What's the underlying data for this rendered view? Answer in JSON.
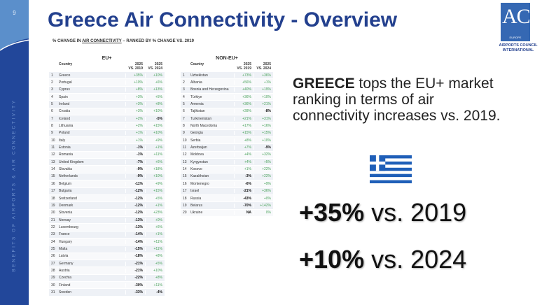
{
  "page_number": "9",
  "sidebar_text": "BENEFITS OF AIRPORTS & AIR CONNECTIVITY",
  "title": "Greece Air Connectivity - Overview",
  "subtitle": {
    "pre": "% CHANGE IN ",
    "link": "AIR CONNECTIVITY",
    "post": " – RANKED BY % CHANGE VS. 2019"
  },
  "logo": {
    "mark": "ACI",
    "region": "EUROPE",
    "name1": "AIRPORTS COUNCIL",
    "name2": "INTERNATIONAL"
  },
  "colors": {
    "brand": "#23408e",
    "positive": "#4aa35b"
  },
  "eu": {
    "group": "EU+",
    "headers": {
      "country": "Country",
      "c1a": "2025",
      "c1b": "VS. 2019",
      "c2a": "2025",
      "c2b": "VS. 2024"
    },
    "rows": [
      [
        "1",
        "Greece",
        "+35%",
        "+10%"
      ],
      [
        "2",
        "Portugal",
        "+10%",
        "+6%"
      ],
      [
        "3",
        "Cyprus",
        "+8%",
        "+13%"
      ],
      [
        "4",
        "Spain",
        "+3%",
        "+5%"
      ],
      [
        "5",
        "Ireland",
        "+3%",
        "+8%"
      ],
      [
        "6",
        "Croatia",
        "+3%",
        "+10%"
      ],
      [
        "7",
        "Iceland",
        "+2%",
        "-5%"
      ],
      [
        "8",
        "Lithuania",
        "+2%",
        "+15%"
      ],
      [
        "9",
        "Poland",
        "+1%",
        "+10%"
      ],
      [
        "10",
        "Italy",
        "+1%",
        "+9%"
      ],
      [
        "11",
        "Estonia",
        "-1%",
        "+1%"
      ],
      [
        "12",
        "Romania",
        "-1%",
        "+11%"
      ],
      [
        "13",
        "United Kingdom",
        "-7%",
        "+6%"
      ],
      [
        "14",
        "Slovakia",
        "-9%",
        "+18%"
      ],
      [
        "15",
        "Netherlands",
        "-9%",
        "+10%"
      ],
      [
        "16",
        "Belgium",
        "-11%",
        "+9%"
      ],
      [
        "17",
        "Bulgaria",
        "-12%",
        "+15%"
      ],
      [
        "18",
        "Switzerland",
        "-12%",
        "+5%"
      ],
      [
        "19",
        "Denmark",
        "-12%",
        "+1%"
      ],
      [
        "20",
        "Slovenia",
        "-12%",
        "+23%"
      ],
      [
        "21",
        "Norway",
        "-13%",
        "+0%"
      ],
      [
        "22",
        "Luxembourg",
        "-13%",
        "+6%"
      ],
      [
        "23",
        "France",
        "-14%",
        "+1%"
      ],
      [
        "24",
        "Hungary",
        "-14%",
        "+11%"
      ],
      [
        "25",
        "Malta",
        "-15%",
        "+11%"
      ],
      [
        "26",
        "Latvia",
        "-18%",
        "+8%"
      ],
      [
        "27",
        "Germany",
        "-21%",
        "+5%"
      ],
      [
        "28",
        "Austria",
        "-21%",
        "+10%"
      ],
      [
        "29",
        "Czechia",
        "-22%",
        "+8%"
      ],
      [
        "30",
        "Finland",
        "-30%",
        "+11%"
      ],
      [
        "31",
        "Sweden",
        "-33%",
        "-4%"
      ]
    ]
  },
  "noneu": {
    "group": "NON-EU+",
    "headers": {
      "country": "Country",
      "c1a": "2025",
      "c1b": "VS. 2019",
      "c2a": "2025",
      "c2b": "VS. 2024"
    },
    "rows": [
      [
        "1",
        "Uzbekistan",
        "+73%",
        "+36%"
      ],
      [
        "2",
        "Albania",
        "+56%",
        "+1%"
      ],
      [
        "3",
        "Bosnia and Herzegovina",
        "+40%",
        "+19%"
      ],
      [
        "4",
        "Türkiye",
        "+36%",
        "+10%"
      ],
      [
        "5",
        "Armenia",
        "+36%",
        "+21%"
      ],
      [
        "6",
        "Tajikistan",
        "+28%",
        "-8%"
      ],
      [
        "7",
        "Turkmenistan",
        "+21%",
        "+31%"
      ],
      [
        "8",
        "North Macedonia",
        "+17%",
        "+16%"
      ],
      [
        "9",
        "Georgia",
        "+15%",
        "+15%"
      ],
      [
        "10",
        "Serbia",
        "+8%",
        "+10%"
      ],
      [
        "11",
        "Azerbaijan",
        "+7%",
        "-9%"
      ],
      [
        "12",
        "Moldova",
        "+4%",
        "+32%"
      ],
      [
        "13",
        "Kyrgyzstan",
        "+4%",
        "+5%"
      ],
      [
        "14",
        "Kosovo",
        "+1%",
        "+22%"
      ],
      [
        "15",
        "Kazakhstan",
        "-3%",
        "+22%"
      ],
      [
        "16",
        "Montenegro",
        "-6%",
        "+9%"
      ],
      [
        "17",
        "Israel",
        "-21%",
        "+36%"
      ],
      [
        "18",
        "Russia",
        "-43%",
        "+0%"
      ],
      [
        "19",
        "Belarus",
        "-70%",
        "+142%"
      ],
      [
        "20",
        "Ukraine",
        "NA",
        "0%"
      ]
    ]
  },
  "headline": {
    "bold": "GREECE",
    "rest": " tops the EU+ market ranking in terms of air connectivity increases vs. 2019."
  },
  "stat1": {
    "value": "+35%",
    "label": " vs. 2019"
  },
  "stat2": {
    "value": "+10%",
    "label": " vs. 2024"
  }
}
